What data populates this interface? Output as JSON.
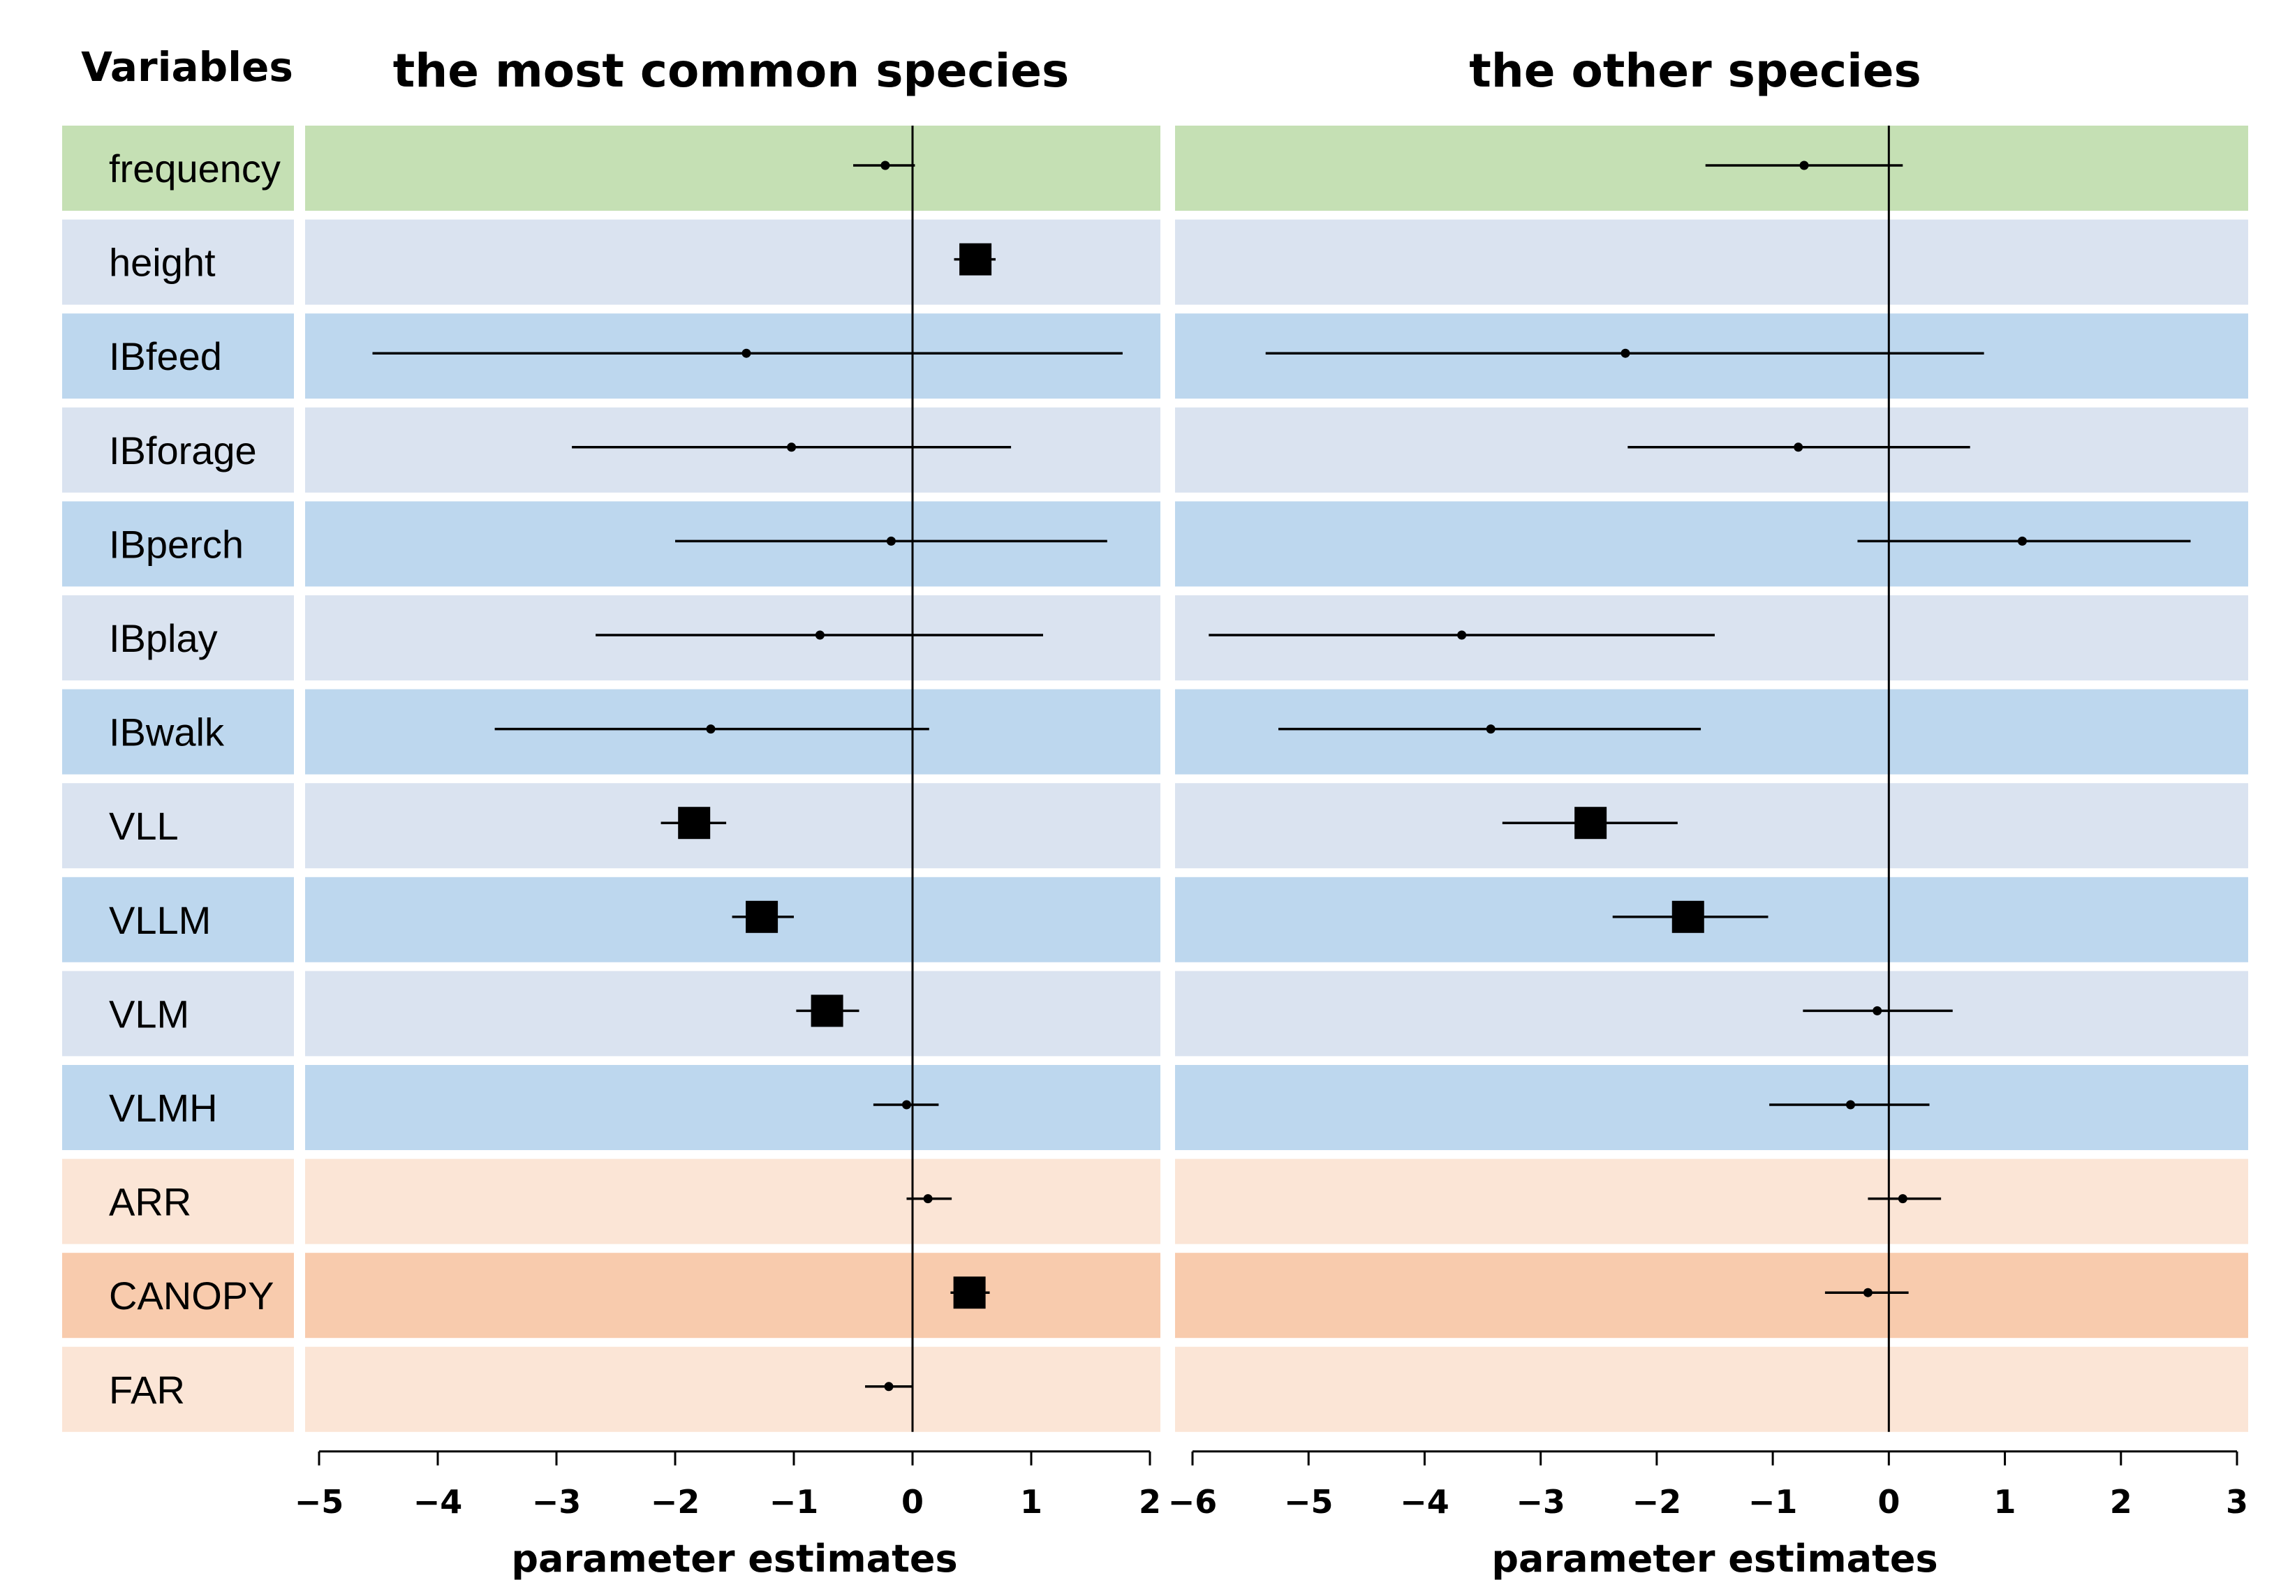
{
  "chart_data": {
    "type": "forest",
    "header_label": "Variables",
    "colors": {
      "green": "#c5e0b4",
      "light_blue": "#dae3f0",
      "blue": "#bdd7ee",
      "light_orange": "#fbe5d6",
      "orange": "#f8cbad",
      "ink": "#000000"
    },
    "variables": [
      {
        "name": "frequency",
        "color": "green"
      },
      {
        "name": "height",
        "color": "light_blue"
      },
      {
        "name": "IBfeed",
        "color": "blue"
      },
      {
        "name": "IBforage",
        "color": "light_blue"
      },
      {
        "name": "IBperch",
        "color": "blue"
      },
      {
        "name": "IBplay",
        "color": "light_blue"
      },
      {
        "name": "IBwalk",
        "color": "blue"
      },
      {
        "name": "VLL",
        "color": "light_blue"
      },
      {
        "name": "VLLM",
        "color": "blue"
      },
      {
        "name": "VLM",
        "color": "light_blue"
      },
      {
        "name": "VLMH",
        "color": "blue"
      },
      {
        "name": "ARR",
        "color": "light_orange"
      },
      {
        "name": "CANOPY",
        "color": "orange"
      },
      {
        "name": "FAR",
        "color": "light_orange"
      }
    ],
    "panels": [
      {
        "title": "the most common species",
        "xlabel": "parameter estimates",
        "xlim": [
          -5,
          2
        ],
        "ticks": [
          -5,
          -4,
          -3,
          -2,
          -1,
          0,
          1,
          2
        ],
        "tick_labels": [
          "−5",
          "−4",
          "−3",
          "−2",
          "−1",
          "0",
          "1",
          "2"
        ],
        "estimates": [
          {
            "est": -0.23,
            "lo": -0.5,
            "hi": 0.02,
            "significant": false
          },
          {
            "est": 0.53,
            "lo": 0.35,
            "hi": 0.7,
            "significant": true
          },
          {
            "est": -1.4,
            "lo": -4.55,
            "hi": 1.77,
            "significant": false
          },
          {
            "est": -1.02,
            "lo": -2.87,
            "hi": 0.83,
            "significant": false
          },
          {
            "est": -0.18,
            "lo": -2.0,
            "hi": 1.64,
            "significant": false
          },
          {
            "est": -0.78,
            "lo": -2.67,
            "hi": 1.1,
            "significant": false
          },
          {
            "est": -1.7,
            "lo": -3.52,
            "hi": 0.14,
            "significant": false
          },
          {
            "est": -1.84,
            "lo": -2.12,
            "hi": -1.57,
            "significant": true
          },
          {
            "est": -1.27,
            "lo": -1.52,
            "hi": -1.0,
            "significant": true
          },
          {
            "est": -0.72,
            "lo": -0.98,
            "hi": -0.45,
            "significant": true
          },
          {
            "est": -0.05,
            "lo": -0.33,
            "hi": 0.22,
            "significant": false
          },
          {
            "est": 0.13,
            "lo": -0.05,
            "hi": 0.33,
            "significant": false
          },
          {
            "est": 0.48,
            "lo": 0.32,
            "hi": 0.65,
            "significant": true
          },
          {
            "est": -0.2,
            "lo": -0.4,
            "hi": 0.0,
            "significant": false
          }
        ]
      },
      {
        "title": "the other species",
        "xlabel": "parameter estimates",
        "xlim": [
          -6,
          3
        ],
        "ticks": [
          -6,
          -5,
          -4,
          -3,
          -2,
          -1,
          0,
          1,
          2,
          3
        ],
        "tick_labels": [
          "−6",
          "−5",
          "−4",
          "−3",
          "−2",
          "−1",
          "0",
          "1",
          "2",
          "3"
        ],
        "estimates": [
          {
            "est": -0.73,
            "lo": -1.58,
            "hi": 0.12,
            "significant": false
          },
          null,
          {
            "est": -2.27,
            "lo": -5.37,
            "hi": 0.82,
            "significant": false
          },
          {
            "est": -0.78,
            "lo": -2.25,
            "hi": 0.7,
            "significant": false
          },
          {
            "est": 1.15,
            "lo": -0.27,
            "hi": 2.6,
            "significant": false
          },
          {
            "est": -3.68,
            "lo": -5.86,
            "hi": -1.5,
            "significant": false
          },
          {
            "est": -3.43,
            "lo": -5.26,
            "hi": -1.62,
            "significant": false
          },
          {
            "est": -2.57,
            "lo": -3.33,
            "hi": -1.82,
            "significant": true
          },
          {
            "est": -1.73,
            "lo": -2.38,
            "hi": -1.04,
            "significant": true
          },
          {
            "est": -0.1,
            "lo": -0.74,
            "hi": 0.55,
            "significant": false
          },
          {
            "est": -0.33,
            "lo": -1.03,
            "hi": 0.35,
            "significant": false
          },
          {
            "est": 0.12,
            "lo": -0.18,
            "hi": 0.45,
            "significant": false
          },
          {
            "est": -0.18,
            "lo": -0.55,
            "hi": 0.17,
            "significant": false
          },
          null
        ]
      }
    ]
  }
}
